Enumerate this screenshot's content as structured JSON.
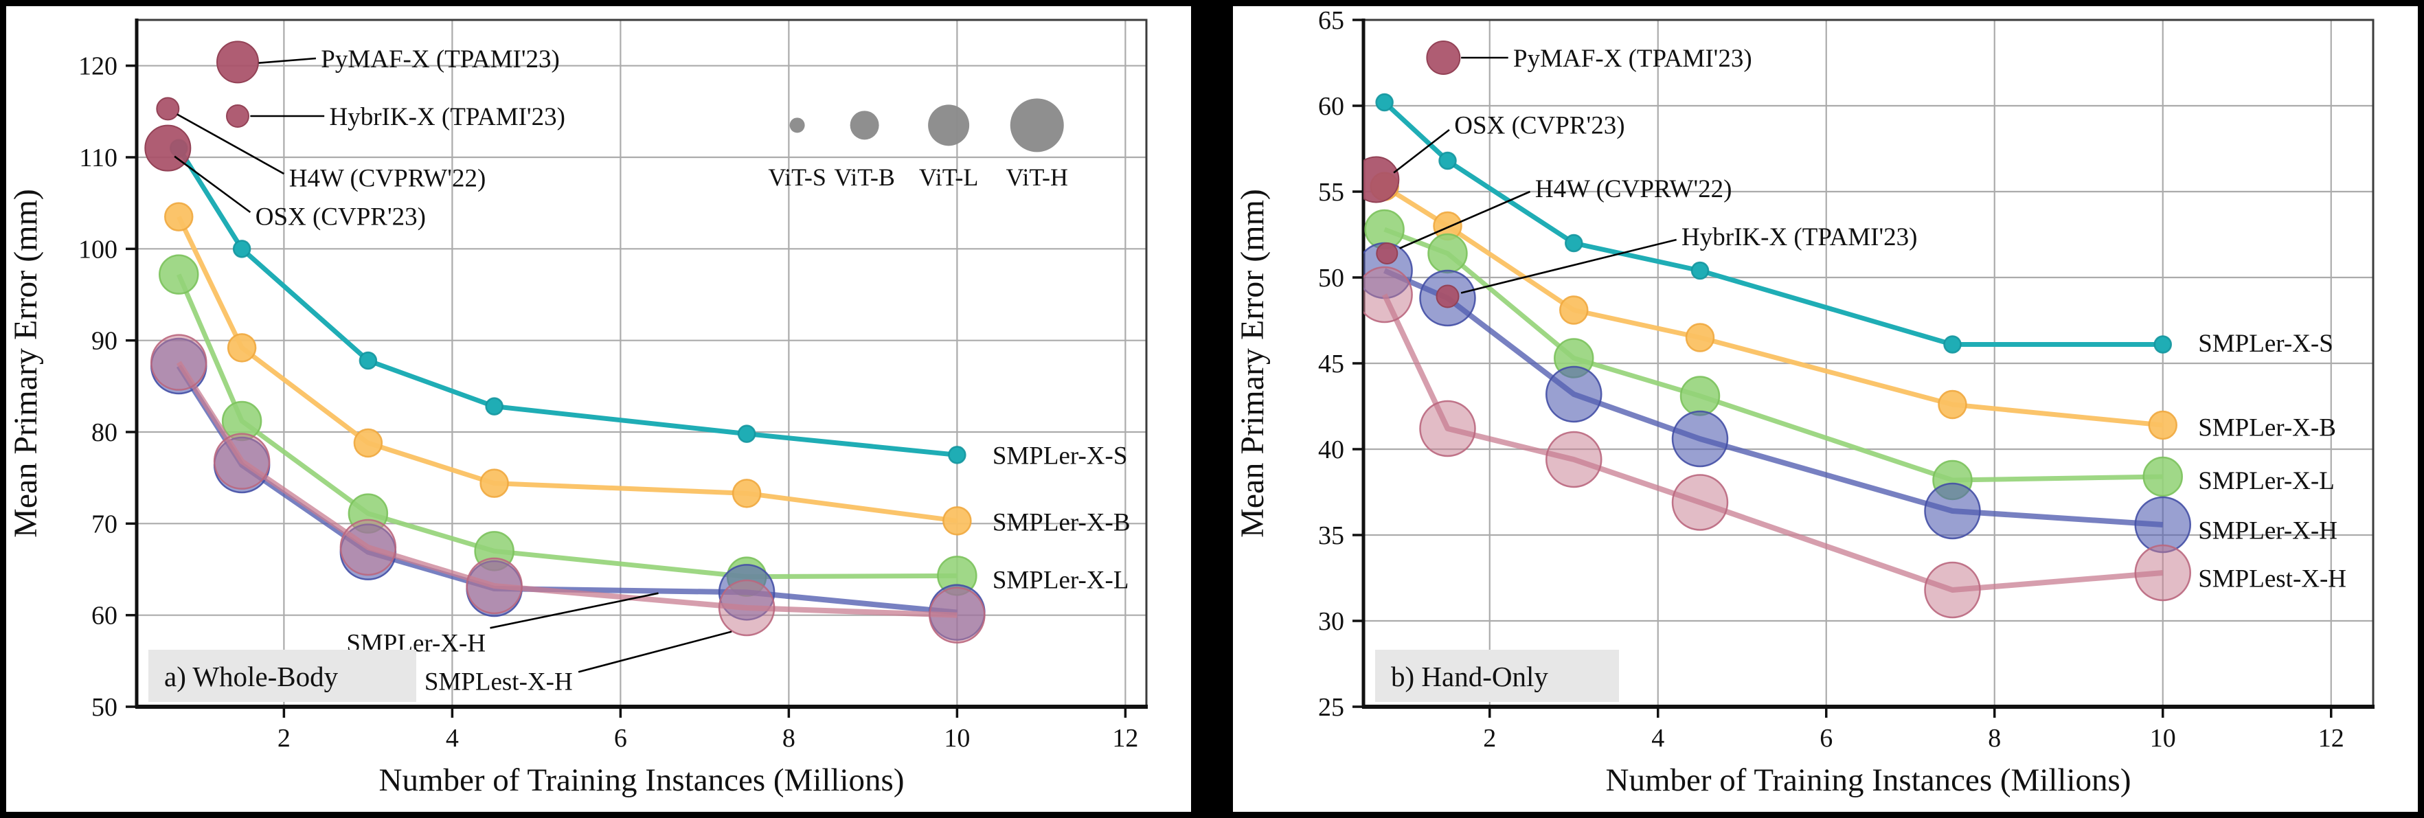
{
  "figure": {
    "background": "#000000",
    "panel_background": "#ffffff"
  },
  "colors": {
    "teal": "#1FADB5",
    "teal_stroke": "#14969E",
    "amber": "#FBC162",
    "amber_stroke": "#EFA93F",
    "green": "#93D377",
    "green_stroke": "#7BC25C",
    "blue": "#5560B2",
    "blue_stroke": "#444FA5",
    "pink": "#C87E92",
    "pink_stroke": "#BA677E",
    "dark_red": "#A95168",
    "dark_red_stroke": "#934256",
    "legend_gray": "#8A8A8A",
    "grid": "#ABABAB",
    "spine": "#111111",
    "box": "#3C3C3C",
    "corner_label_bg": "#E7E7E7",
    "leader_line": "#000000"
  },
  "chart_data": [
    {
      "type": "scatter",
      "subtype": "bubble-line",
      "panel_label": "a) Whole-Body",
      "xlabel": "Number of Training Instances (Millions)",
      "ylabel": "Mean Primary Error (mm)",
      "xlim": [
        0.25,
        12.25
      ],
      "ylim": [
        50,
        125
      ],
      "xticks": [
        2,
        4,
        6,
        8,
        10,
        12
      ],
      "yticks": [
        50,
        60,
        70,
        80,
        90,
        100,
        110,
        120
      ],
      "grid": true,
      "legend_position": "inline-right",
      "x": [
        0.75,
        1.5,
        3,
        4.5,
        7.5,
        10
      ],
      "series": [
        {
          "name": "SMPLer-X-S",
          "backbone": "ViT-S",
          "color": "teal",
          "marker_radius": 12,
          "line_width": 7,
          "marker_opacity": 1,
          "line_opacity": 1,
          "values": [
            111.0,
            100.0,
            87.8,
            82.8,
            79.8,
            77.5
          ],
          "end_label": {
            "x": 10.42,
            "y": 77.5
          }
        },
        {
          "name": "SMPLer-X-B",
          "backbone": "ViT-B",
          "color": "amber",
          "marker_radius": 20,
          "line_width": 7,
          "marker_opacity": 0.95,
          "line_opacity": 0.95,
          "values": [
            103.5,
            89.2,
            78.8,
            74.4,
            73.3,
            70.3
          ],
          "end_label": {
            "x": 10.42,
            "y": 70.2
          }
        },
        {
          "name": "SMPLer-X-L",
          "backbone": "ViT-L",
          "color": "green",
          "marker_radius": 28,
          "line_width": 7,
          "marker_opacity": 0.88,
          "line_opacity": 0.9,
          "values": [
            97.2,
            81.2,
            71.1,
            67.0,
            64.2,
            64.3
          ],
          "end_label": {
            "x": 10.42,
            "y": 63.9
          }
        },
        {
          "name": "SMPLer-X-H",
          "backbone": "ViT-H",
          "color": "blue",
          "marker_radius": 40,
          "line_width": 8,
          "marker_opacity": 0.6,
          "line_opacity": 0.8,
          "values": [
            87.2,
            76.4,
            66.9,
            62.9,
            62.5,
            60.3
          ],
          "pointer_label": {
            "x": 3.57,
            "y": 57.0,
            "line": [
              [
                4.45,
                58.6
              ],
              [
                6.45,
                62.4
              ]
            ]
          }
        },
        {
          "name": "SMPLest-X-H",
          "backbone": "ViT-H",
          "color": "pink",
          "marker_radius": 40,
          "line_width": 8,
          "marker_opacity": 0.52,
          "line_opacity": 0.75,
          "values": [
            87.6,
            76.8,
            67.4,
            63.2,
            60.8,
            60.0
          ],
          "pointer_label": {
            "x": 4.55,
            "y": 52.8,
            "line": [
              [
                5.5,
                53.8
              ],
              [
                7.32,
                58.2
              ]
            ]
          }
        }
      ],
      "annotations": [
        {
          "text": "PyMAF-X (TPAMI'23)",
          "x": 1.45,
          "y": 120.4,
          "radius": 30,
          "label_x": 2.44,
          "label_y": 120.8,
          "line": [
            [
              1.7,
              120.3
            ],
            [
              2.38,
              120.8
            ]
          ]
        },
        {
          "text": "HybrIK-X (TPAMI'23)",
          "x": 1.45,
          "y": 114.5,
          "radius": 16,
          "label_x": 2.54,
          "label_y": 114.5,
          "line": [
            [
              1.6,
              114.5
            ],
            [
              2.48,
              114.5
            ]
          ]
        },
        {
          "text": "H4W (CVPRW'22)",
          "x": 0.62,
          "y": 115.3,
          "radius": 16,
          "label_x": 2.06,
          "label_y": 107.8,
          "line": [
            [
              2.0,
              108.2
            ],
            [
              0.73,
              114.7
            ]
          ]
        },
        {
          "text": "OSX (CVPR'23)",
          "x": 0.62,
          "y": 111.0,
          "radius": 33,
          "label_x": 1.66,
          "label_y": 103.6,
          "line": [
            [
              1.6,
              104.0
            ],
            [
              0.7,
              110.1
            ]
          ]
        }
      ],
      "size_legend": {
        "title": "",
        "circle_y": 113.5,
        "label_y": 107.9,
        "items": [
          {
            "label": "ViT-S",
            "x": 8.1,
            "radius": 11
          },
          {
            "label": "ViT-B",
            "x": 8.9,
            "radius": 21
          },
          {
            "label": "ViT-L",
            "x": 9.9,
            "radius": 30
          },
          {
            "label": "ViT-H",
            "x": 10.95,
            "radius": 39
          }
        ]
      }
    },
    {
      "type": "scatter",
      "subtype": "bubble-line",
      "panel_label": "b) Hand-Only",
      "xlabel": "Number of Training Instances (Millions)",
      "ylabel": "Mean Primary Error (mm)",
      "xlim": [
        0.5,
        12.5
      ],
      "ylim": [
        25,
        65
      ],
      "xticks": [
        2,
        4,
        6,
        8,
        10,
        12
      ],
      "yticks": [
        25,
        30,
        35,
        40,
        45,
        50,
        55,
        60,
        65
      ],
      "grid": true,
      "legend_position": "inline-right",
      "x": [
        0.75,
        1.5,
        3,
        4.5,
        7.5,
        10
      ],
      "series": [
        {
          "name": "SMPLer-X-S",
          "backbone": "ViT-S",
          "color": "teal",
          "marker_radius": 12,
          "line_width": 7,
          "marker_opacity": 1,
          "line_opacity": 1,
          "values": [
            60.2,
            56.8,
            52.0,
            50.4,
            46.1,
            46.1
          ],
          "end_label": {
            "x": 10.42,
            "y": 46.2
          }
        },
        {
          "name": "SMPLer-X-B",
          "backbone": "ViT-B",
          "color": "amber",
          "marker_radius": 20,
          "line_width": 7,
          "marker_opacity": 0.95,
          "line_opacity": 0.95,
          "values": [
            55.3,
            53.0,
            48.1,
            46.5,
            42.6,
            41.4
          ],
          "end_label": {
            "x": 10.42,
            "y": 41.3
          }
        },
        {
          "name": "SMPLer-X-L",
          "backbone": "ViT-L",
          "color": "green",
          "marker_radius": 28,
          "line_width": 7,
          "marker_opacity": 0.88,
          "line_opacity": 0.9,
          "values": [
            52.8,
            51.4,
            45.3,
            43.1,
            38.2,
            38.4
          ],
          "end_label": {
            "x": 10.42,
            "y": 38.2
          }
        },
        {
          "name": "SMPLer-X-H",
          "backbone": "ViT-H",
          "color": "blue",
          "marker_radius": 40,
          "line_width": 8,
          "marker_opacity": 0.6,
          "line_opacity": 0.8,
          "values": [
            50.4,
            48.8,
            43.2,
            40.6,
            36.4,
            35.6
          ],
          "end_label": {
            "x": 10.42,
            "y": 35.3
          }
        },
        {
          "name": "SMPLest-X-H",
          "backbone": "ViT-H",
          "color": "pink",
          "marker_radius": 40,
          "line_width": 8,
          "marker_opacity": 0.52,
          "line_opacity": 0.75,
          "values": [
            49.0,
            41.2,
            39.4,
            36.9,
            31.8,
            32.8
          ],
          "end_label": {
            "x": 10.42,
            "y": 32.5
          }
        }
      ],
      "annotations": [
        {
          "text": "PyMAF-X (TPAMI'23)",
          "x": 1.45,
          "y": 62.8,
          "radius": 24,
          "label_x": 2.28,
          "label_y": 62.8,
          "line": [
            [
              1.66,
              62.8
            ],
            [
              2.22,
              62.8
            ]
          ]
        },
        {
          "text": "OSX (CVPR'23)",
          "x": 0.65,
          "y": 55.7,
          "radius": 33,
          "label_x": 1.58,
          "label_y": 58.9,
          "line": [
            [
              1.52,
              58.6
            ],
            [
              0.86,
              56.1
            ]
          ]
        },
        {
          "text": "H4W (CVPRW'22)",
          "x": 0.78,
          "y": 51.4,
          "radius": 15,
          "label_x": 2.54,
          "label_y": 55.2,
          "line": [
            [
              2.48,
              55.0
            ],
            [
              0.93,
              51.7
            ]
          ]
        },
        {
          "text": "HybrIK-X (TPAMI'23)",
          "x": 1.5,
          "y": 48.9,
          "radius": 16,
          "label_x": 4.28,
          "label_y": 52.4,
          "line": [
            [
              4.22,
              52.2
            ],
            [
              1.66,
              49.1
            ]
          ]
        }
      ],
      "size_legend": null
    }
  ]
}
